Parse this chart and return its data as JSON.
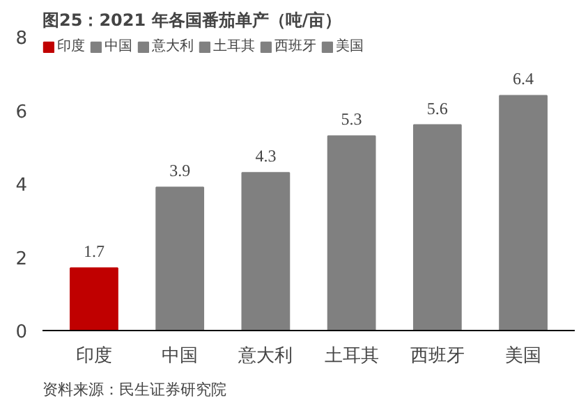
{
  "chart_data": {
    "type": "bar",
    "title": "图25：2021 年各国番茄单产（吨/亩）",
    "categories": [
      "印度",
      "中国",
      "意大利",
      "土耳其",
      "西班牙",
      "美国"
    ],
    "series": [
      {
        "name": "印度",
        "color": "#c00000",
        "values": [
          1.7,
          null,
          null,
          null,
          null,
          null
        ]
      },
      {
        "name": "中国",
        "color": "#808080",
        "values": [
          null,
          3.9,
          null,
          null,
          null,
          null
        ]
      },
      {
        "name": "意大利",
        "color": "#808080",
        "values": [
          null,
          null,
          4.3,
          null,
          null,
          null
        ]
      },
      {
        "name": "土耳其",
        "color": "#808080",
        "values": [
          null,
          null,
          null,
          5.3,
          null,
          null
        ]
      },
      {
        "name": "西班牙",
        "color": "#808080",
        "values": [
          null,
          null,
          null,
          null,
          5.6,
          null
        ]
      },
      {
        "name": "美国",
        "color": "#808080",
        "values": [
          null,
          null,
          null,
          null,
          null,
          6.4
        ]
      }
    ],
    "ylim": [
      0,
      8
    ],
    "yticks": [
      0,
      2,
      4,
      6,
      8
    ],
    "grid": false,
    "legend": "top",
    "data_labels": true,
    "annotations": [
      "资料来源：民生证券研究院"
    ]
  }
}
